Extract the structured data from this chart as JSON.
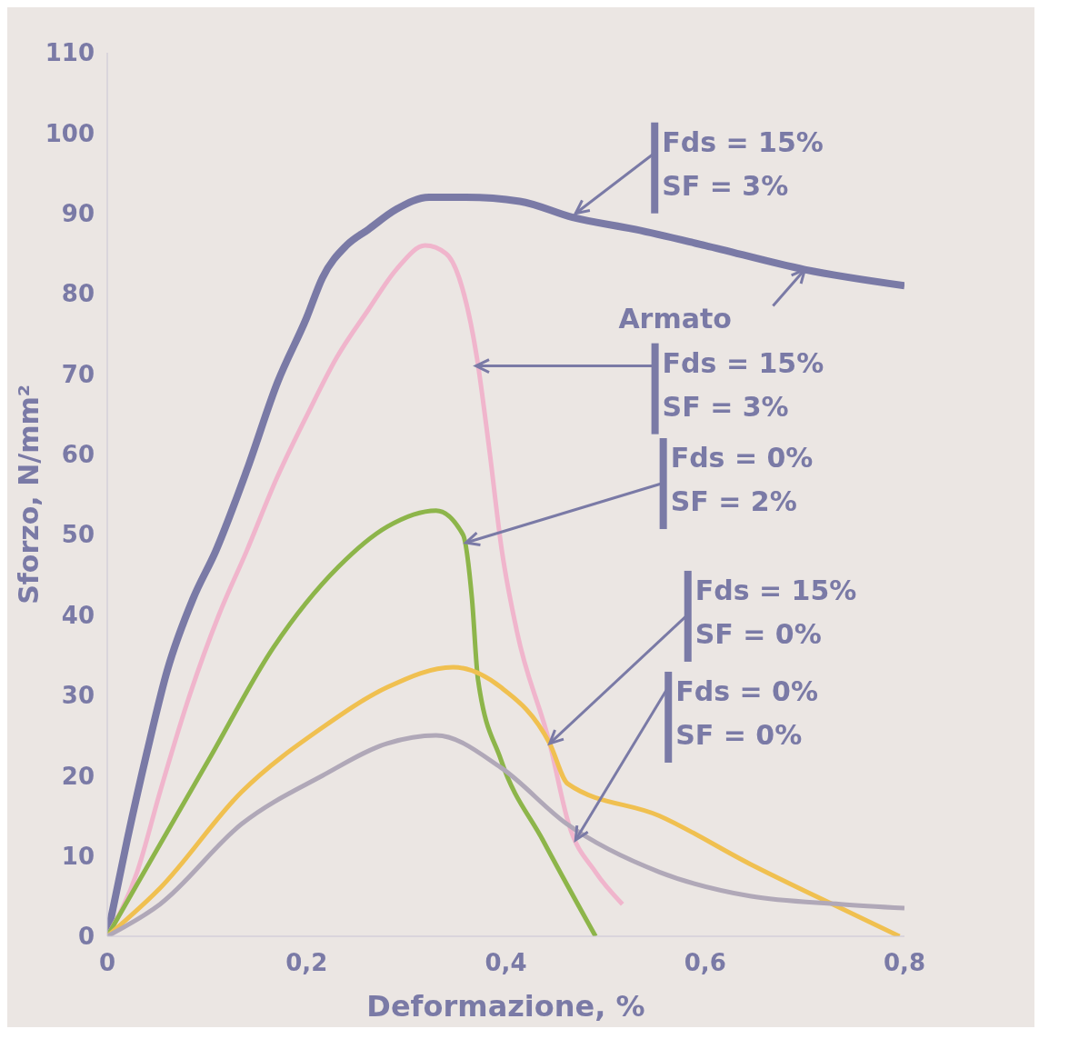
{
  "chart_data": {
    "type": "line",
    "xlabel": "Deformazione, %",
    "ylabel": "Sforzo, N/mm²",
    "xlim": [
      0,
      0.8
    ],
    "xticks": [
      {
        "value": 0,
        "label": "0"
      },
      {
        "value": 0.2,
        "label": "0,2"
      },
      {
        "value": 0.4,
        "label": "0,4"
      },
      {
        "value": 0.6,
        "label": "0,6"
      },
      {
        "value": 0.8,
        "label": "0,8"
      }
    ],
    "ylim": [
      0,
      110
    ],
    "yticks": [
      0,
      10,
      20,
      30,
      40,
      50,
      60,
      70,
      80,
      90,
      100,
      110
    ],
    "series": [
      {
        "color": "#7a7aa6",
        "x": [
          0,
          0.02,
          0.04,
          0.06,
          0.086,
          0.109,
          0.14,
          0.171,
          0.2,
          0.216,
          0.24,
          0.262,
          0.29,
          0.323,
          0.36,
          0.414,
          0.467,
          0.53,
          0.6,
          0.7,
          0.8
        ],
        "values": [
          0,
          12,
          23,
          33,
          42,
          48,
          58,
          69,
          77,
          82,
          86,
          88,
          90.5,
          92,
          92,
          91.5,
          89.5,
          88,
          86,
          83,
          81
        ]
      },
      {
        "color": "#f0b5cc",
        "x": [
          0,
          0.03,
          0.053,
          0.08,
          0.112,
          0.14,
          0.17,
          0.201,
          0.23,
          0.262,
          0.29,
          0.319,
          0.34,
          0.353,
          0.371,
          0.383,
          0.396,
          0.411,
          0.444,
          0.463,
          0.49,
          0.517
        ],
        "values": [
          0,
          8,
          18,
          29,
          40,
          48,
          57,
          65,
          72,
          78,
          83,
          86,
          85,
          82,
          72,
          61,
          48,
          38,
          24,
          14,
          8,
          4
        ]
      },
      {
        "color": "#8db54a",
        "x": [
          0,
          0.037,
          0.102,
          0.167,
          0.232,
          0.281,
          0.33,
          0.357,
          0.366,
          0.372,
          0.395,
          0.437,
          0.49
        ],
        "values": [
          0,
          8,
          22,
          36,
          46,
          51,
          53,
          50,
          42,
          32,
          22,
          12,
          0
        ]
      },
      {
        "color": "#f0c050",
        "x": [
          0,
          0.053,
          0.135,
          0.216,
          0.281,
          0.347,
          0.395,
          0.444,
          0.462,
          0.554,
          0.645,
          0.736,
          0.795
        ],
        "values": [
          0,
          6,
          18,
          26,
          31,
          33.5,
          31,
          24,
          19,
          15,
          9,
          3.5,
          0
        ]
      },
      {
        "color": "#b0a8b8",
        "x": [
          0,
          0.053,
          0.135,
          0.216,
          0.281,
          0.33,
          0.395,
          0.461,
          0.554,
          0.645,
          0.736,
          0.8
        ],
        "values": [
          0,
          4,
          14,
          20,
          24,
          25,
          21,
          14,
          8,
          5,
          4,
          3.5
        ]
      }
    ],
    "annotations": [
      {
        "text": "Fds = 15%\nSF = 3%",
        "x": 0.47,
        "y": 90
      },
      {
        "text": "Armato",
        "x": 0.7,
        "y": 83
      },
      {
        "text": "Fds = 15%\nSF = 3%",
        "x": 0.37,
        "y": 71
      },
      {
        "text": "Fds = 0%\nSF = 2%",
        "x": 0.36,
        "y": 49
      },
      {
        "text": "Fds = 15%\nSF = 0%",
        "x": 0.444,
        "y": 24
      },
      {
        "text": "Fds = 0%\nSF = 0%",
        "x": 0.47,
        "y": 12
      }
    ]
  }
}
